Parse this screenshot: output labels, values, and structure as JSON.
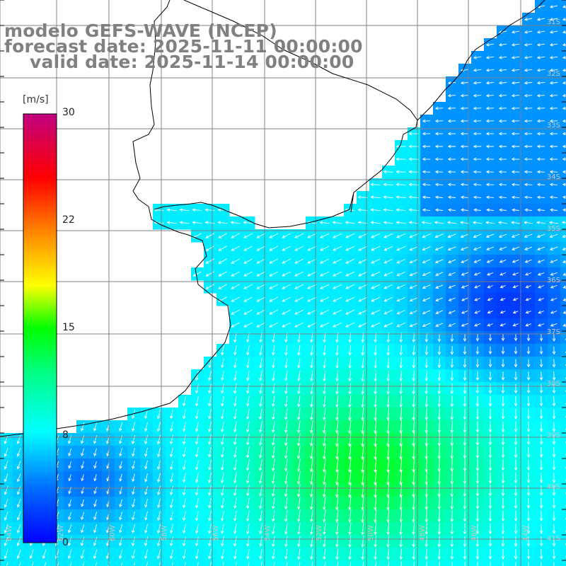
{
  "title": {
    "line1": "modelo GEFS-WAVE (NCEP)",
    "line2": "forecast date: 2025-11-11 00:00:00",
    "line3": "valid date: 2025-11-14 00:00:00"
  },
  "colorbar": {
    "unit": "[m/s]",
    "ticks": [
      "30",
      "22",
      "15",
      "8",
      "0"
    ],
    "min": 0,
    "max": 30,
    "colors": [
      "#0000ff",
      "#0080ff",
      "#00e5ff",
      "#00ff80",
      "#00ff00",
      "#ffff00",
      "#ff8000",
      "#ff0000",
      "#c0007f"
    ]
  },
  "lat_labels": [
    "31S",
    "32S",
    "33S",
    "34S",
    "35S",
    "36S",
    "37S",
    "38S",
    "39S",
    "40S",
    "41S"
  ],
  "lon_labels": [
    "64W",
    "62W",
    "60W",
    "58W",
    "56W",
    "54W",
    "52W",
    "50W",
    "48W",
    "46W",
    "44W"
  ],
  "field": {
    "description_keys": [
      "wind speed",
      "wind direction arrows"
    ],
    "land_color": "#ffffff",
    "coast_color": "#000000",
    "grid_color": "#808080"
  }
}
